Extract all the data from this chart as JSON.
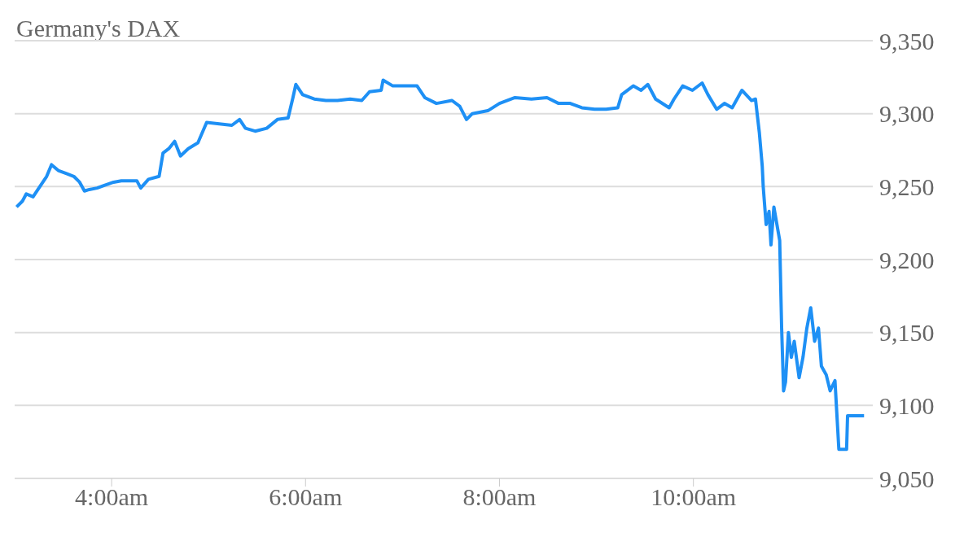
{
  "chart_data": {
    "type": "line",
    "title": "Germany's DAX",
    "x": [
      3.02,
      3.08,
      3.12,
      3.19,
      3.24,
      3.33,
      3.38,
      3.45,
      3.53,
      3.61,
      3.67,
      3.72,
      3.77,
      3.85,
      3.93,
      4.02,
      4.1,
      4.26,
      4.3,
      4.38,
      4.49,
      4.53,
      4.59,
      4.65,
      4.71,
      4.79,
      4.89,
      4.98,
      5.11,
      5.24,
      5.32,
      5.38,
      5.48,
      5.6,
      5.71,
      5.82,
      5.87,
      5.9,
      5.97,
      6.09,
      6.21,
      6.33,
      6.46,
      6.58,
      6.66,
      6.78,
      6.8,
      6.9,
      7.02,
      7.15,
      7.23,
      7.35,
      7.51,
      7.59,
      7.66,
      7.72,
      7.88,
      8.0,
      8.16,
      8.33,
      8.49,
      8.61,
      8.73,
      8.85,
      8.98,
      9.1,
      9.22,
      9.26,
      9.38,
      9.46,
      9.53,
      9.61,
      9.75,
      9.8,
      9.89,
      9.99,
      10.09,
      10.15,
      10.24,
      10.32,
      10.4,
      10.5,
      10.6,
      10.64,
      10.68,
      10.71,
      10.72,
      10.75,
      10.78,
      10.8,
      10.83,
      10.89,
      10.91,
      10.93,
      10.95,
      10.98,
      11.01,
      11.04,
      11.09,
      11.13,
      11.17,
      11.21,
      11.25,
      11.29,
      11.32,
      11.37,
      11.41,
      11.46,
      11.5,
      11.58,
      11.59,
      11.76
    ],
    "series": [
      {
        "color": "#1e90f5",
        "values": [
          9236,
          9240,
          9245,
          9243,
          9248,
          9257,
          9265,
          9261,
          9259,
          9257,
          9253,
          9247,
          9248,
          9249,
          9251,
          9253,
          9254,
          9254,
          9249,
          9255,
          9257,
          9273,
          9276,
          9281,
          9271,
          9276,
          9280,
          9294,
          9293,
          9292,
          9296,
          9290,
          9288,
          9290,
          9296,
          9297,
          9311,
          9320,
          9313,
          9310,
          9309,
          9309,
          9310,
          9309,
          9315,
          9316,
          9323,
          9319,
          9319,
          9319,
          9311,
          9307,
          9309,
          9305,
          9296,
          9300,
          9302,
          9307,
          9311,
          9310,
          9311,
          9307,
          9307,
          9304,
          9303,
          9303,
          9304,
          9313,
          9319,
          9316,
          9320,
          9310,
          9304,
          9310,
          9319,
          9316,
          9321,
          9313,
          9303,
          9307,
          9304,
          9316,
          9309,
          9310,
          9287,
          9264,
          9250,
          9224,
          9233,
          9210,
          9236,
          9213,
          9153,
          9110,
          9116,
          9150,
          9133,
          9144,
          9119,
          9133,
          9153,
          9167,
          9144,
          9153,
          9127,
          9121,
          9110,
          9117,
          9070,
          9070,
          9093,
          9093
        ]
      }
    ],
    "xlim": [
      3,
      11.85
    ],
    "xticks": [
      {
        "value": 4,
        "label": "4:00am"
      },
      {
        "value": 6,
        "label": "6:00am"
      },
      {
        "value": 8,
        "label": "8:00am"
      },
      {
        "value": 10,
        "label": "10:00am"
      }
    ],
    "ylim": [
      9050,
      9350
    ],
    "yticks": [
      {
        "value": 9050,
        "label": "9,050"
      },
      {
        "value": 9100,
        "label": "9,100"
      },
      {
        "value": 9150,
        "label": "9,150"
      },
      {
        "value": 9200,
        "label": "9,200"
      },
      {
        "value": 9250,
        "label": "9,250"
      },
      {
        "value": 9300,
        "label": "9,300"
      },
      {
        "value": 9350,
        "label": "9,350"
      }
    ],
    "grid": "y",
    "legend": false,
    "marker": "none",
    "line_style": "solid"
  }
}
